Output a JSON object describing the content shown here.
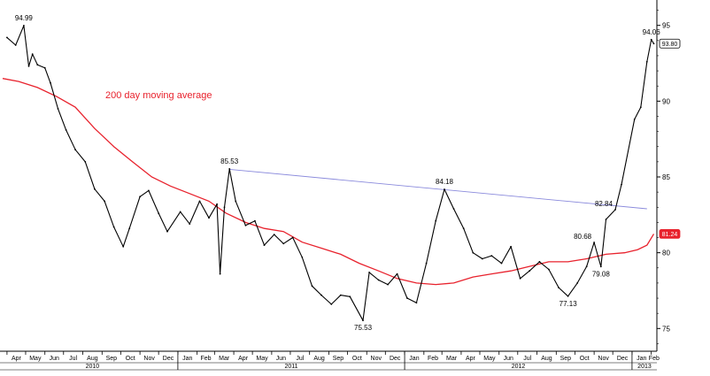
{
  "chart_data": {
    "type": "line",
    "title": "",
    "xlabel": "",
    "ylabel": "",
    "ylim": [
      73.5,
      96.5
    ],
    "xlim": [
      "2010-03-25",
      "2013-02-10"
    ],
    "y_ticks": [
      75,
      80,
      85,
      90,
      95
    ],
    "grid": false,
    "month_labels": [
      "Apr",
      "May",
      "Jun",
      "Jul",
      "Aug",
      "Sep",
      "Oct",
      "Nov",
      "Dec",
      "Jan",
      "Feb",
      "Mar",
      "Apr",
      "May",
      "Jun",
      "Jul",
      "Aug",
      "Sep",
      "Oct",
      "Nov",
      "Dec",
      "Jan",
      "Feb",
      "Mar",
      "Apr",
      "May",
      "Jun",
      "Jul",
      "Aug",
      "Sep",
      "Oct",
      "Nov",
      "Dec",
      "Jan",
      "Feb"
    ],
    "year_labels": [
      "2010",
      "2011",
      "2012",
      "2013"
    ],
    "series": [
      {
        "type": "price",
        "color": "#000000",
        "x": [
          "2010-04-01",
          "2010-04-15",
          "2010-04-28",
          "2010-05-06",
          "2010-05-12",
          "2010-05-20",
          "2010-06-01",
          "2010-06-10",
          "2010-06-22",
          "2010-07-05",
          "2010-07-20",
          "2010-08-05",
          "2010-08-20",
          "2010-09-05",
          "2010-09-20",
          "2010-10-05",
          "2010-10-15",
          "2010-11-01",
          "2010-11-15",
          "2010-12-01",
          "2010-12-15",
          "2011-01-05",
          "2011-01-20",
          "2011-02-05",
          "2011-02-20",
          "2011-03-05",
          "2011-03-10",
          "2011-03-17",
          "2011-03-25",
          "2011-04-04",
          "2011-04-20",
          "2011-05-05",
          "2011-05-20",
          "2011-06-05",
          "2011-06-20",
          "2011-07-05",
          "2011-07-20",
          "2011-08-05",
          "2011-08-20",
          "2011-09-05",
          "2011-09-20",
          "2011-10-05",
          "2011-10-26",
          "2011-11-05",
          "2011-11-20",
          "2011-12-05",
          "2011-12-20",
          "2012-01-05",
          "2012-01-20",
          "2012-02-05",
          "2012-02-20",
          "2012-03-05",
          "2012-03-20",
          "2012-04-05",
          "2012-04-20",
          "2012-05-05",
          "2012-05-20",
          "2012-06-05",
          "2012-06-20",
          "2012-07-05",
          "2012-07-20",
          "2012-08-05",
          "2012-08-20",
          "2012-09-05",
          "2012-09-20",
          "2012-10-05",
          "2012-10-20",
          "2012-11-01",
          "2012-11-12",
          "2012-11-20",
          "2012-12-05",
          "2012-12-15",
          "2013-01-05",
          "2013-01-15",
          "2013-01-25",
          "2013-02-01",
          "2013-02-05"
        ],
        "y": [
          94.2,
          93.7,
          94.99,
          92.3,
          93.1,
          92.4,
          92.2,
          91.2,
          89.5,
          88.1,
          86.8,
          86.0,
          84.2,
          83.4,
          81.7,
          80.4,
          81.6,
          83.7,
          84.1,
          82.6,
          81.4,
          82.7,
          81.9,
          83.4,
          82.3,
          83.2,
          78.6,
          83.0,
          85.53,
          83.4,
          81.8,
          82.1,
          80.5,
          81.2,
          80.6,
          81.0,
          79.7,
          77.8,
          77.2,
          76.6,
          77.2,
          77.1,
          75.53,
          78.7,
          78.2,
          77.9,
          78.6,
          77.0,
          76.7,
          79.3,
          82.1,
          84.18,
          82.9,
          81.6,
          80.0,
          79.6,
          79.8,
          79.3,
          80.4,
          78.3,
          78.8,
          79.4,
          78.9,
          77.7,
          77.13,
          78.0,
          79.1,
          80.68,
          79.08,
          82.2,
          82.84,
          84.5,
          88.8,
          89.6,
          92.6,
          94.06,
          93.8
        ]
      },
      {
        "type": "moving_average",
        "color": "#e8222d",
        "x": [
          "2010-03-25",
          "2010-04-20",
          "2010-05-20",
          "2010-06-20",
          "2010-07-20",
          "2010-08-20",
          "2010-09-20",
          "2010-10-20",
          "2010-11-20",
          "2010-12-20",
          "2011-01-20",
          "2011-02-20",
          "2011-03-20",
          "2011-04-20",
          "2011-05-20",
          "2011-06-20",
          "2011-07-20",
          "2011-08-20",
          "2011-09-20",
          "2011-10-20",
          "2011-11-20",
          "2011-12-20",
          "2012-01-20",
          "2012-02-20",
          "2012-03-20",
          "2012-04-20",
          "2012-05-20",
          "2012-06-20",
          "2012-07-20",
          "2012-08-20",
          "2012-09-20",
          "2012-10-20",
          "2012-11-20",
          "2012-12-20",
          "2013-01-10",
          "2013-01-25",
          "2013-02-05"
        ],
        "y": [
          91.5,
          91.3,
          90.9,
          90.3,
          89.6,
          88.2,
          87.0,
          86.0,
          85.0,
          84.4,
          83.9,
          83.4,
          82.6,
          82.0,
          81.6,
          81.4,
          80.7,
          80.3,
          79.9,
          79.3,
          78.8,
          78.3,
          78.0,
          77.9,
          78.0,
          78.4,
          78.6,
          78.8,
          79.1,
          79.4,
          79.4,
          79.6,
          79.9,
          80.0,
          80.2,
          80.5,
          81.24
        ]
      },
      {
        "type": "trendline",
        "color": "#8a8adc",
        "x": [
          "2011-03-25",
          "2013-01-25"
        ],
        "y": [
          85.5,
          82.9
        ]
      }
    ],
    "annotations": [
      {
        "text": "94.99",
        "x": "2010-04-28",
        "y": 94.99,
        "pos": "above"
      },
      {
        "text": "85.53",
        "x": "2011-03-25",
        "y": 85.53,
        "pos": "above"
      },
      {
        "text": "75.53",
        "x": "2011-10-26",
        "y": 75.53,
        "pos": "below"
      },
      {
        "text": "84.18",
        "x": "2012-03-05",
        "y": 84.18,
        "pos": "above"
      },
      {
        "text": "77.13",
        "x": "2012-09-20",
        "y": 77.13,
        "pos": "below"
      },
      {
        "text": "79.08",
        "x": "2012-11-12",
        "y": 79.08,
        "pos": "below"
      },
      {
        "text": "80.68",
        "x": "2012-11-01",
        "y": 80.68,
        "pos": "left"
      },
      {
        "text": "82.84",
        "x": "2012-12-05",
        "y": 82.84,
        "pos": "left"
      },
      {
        "text": "94.06",
        "x": "2013-02-01",
        "y": 94.06,
        "pos": "above"
      }
    ],
    "series_label": {
      "text": "200 day moving average",
      "color": "#e8222d"
    },
    "last_value_badges": [
      {
        "text": "93.80",
        "y": 93.8,
        "border": "#000000",
        "fill": "#ffffff",
        "text_color": "#000000"
      },
      {
        "text": "81.24",
        "y": 81.24,
        "border": "#e8222d",
        "fill": "#e8222d",
        "text_color": "#ffffff"
      }
    ]
  }
}
